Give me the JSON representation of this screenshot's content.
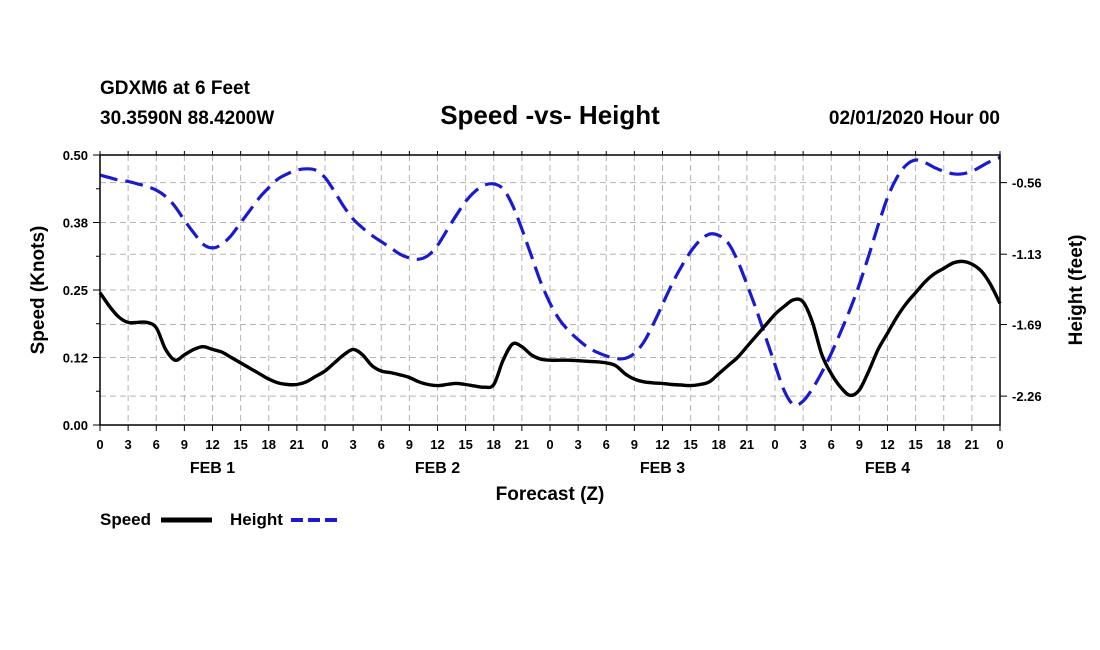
{
  "header": {
    "station": "GDXM6 at 6 Feet",
    "coords": "30.3590N 88.4200W",
    "title": "Speed -vs- Height",
    "datetime": "02/01/2020 Hour 00"
  },
  "legend": {
    "speed_label": "Speed",
    "height_label": "Height"
  },
  "colors": {
    "speed": "#000000",
    "height": "#1a1ad0",
    "grid": "#b4b4b4"
  },
  "chart_data": {
    "type": "line",
    "title": "Speed -vs- Height",
    "xlabel": "Forecast (Z)",
    "ylabel": "Speed (Knots)",
    "y2label": "Height (feet)",
    "xlim": [
      0,
      96
    ],
    "ylim": [
      0,
      0.5
    ],
    "y2lim": [
      -2.49,
      -0.34
    ],
    "x_tick_labels": [
      "0",
      "3",
      "6",
      "9",
      "12",
      "15",
      "18",
      "21",
      "0",
      "3",
      "6",
      "9",
      "12",
      "15",
      "18",
      "21",
      "0",
      "3",
      "6",
      "9",
      "12",
      "15",
      "18",
      "21",
      "0",
      "3",
      "6",
      "9",
      "12",
      "15",
      "18",
      "21",
      "0"
    ],
    "y_ticks": [
      "0.50",
      "0.38",
      "0.25",
      "0.12",
      "0.00"
    ],
    "y_tick_values": [
      0.5,
      0.375,
      0.25,
      0.125,
      0.0
    ],
    "y2_ticks": [
      "-0.56",
      "-1.13",
      "-1.69",
      "-2.26"
    ],
    "y2_tick_values": [
      -0.56,
      -1.13,
      -1.69,
      -2.26
    ],
    "day_labels": [
      {
        "label": "FEB 1",
        "hour": 12
      },
      {
        "label": "FEB 2",
        "hour": 36
      },
      {
        "label": "FEB 3",
        "hour": 60
      },
      {
        "label": "FEB 4",
        "hour": 84
      }
    ],
    "series": [
      {
        "name": "Speed",
        "axis": "left",
        "style": "solid",
        "x": [
          0,
          1,
          2,
          3,
          4,
          5,
          6,
          7,
          8,
          9,
          10,
          11,
          12,
          13,
          14,
          15,
          16,
          17,
          18,
          19,
          20,
          21,
          22,
          23,
          24,
          25,
          26,
          27,
          28,
          29,
          30,
          31,
          32,
          33,
          34,
          35,
          36,
          37,
          38,
          39,
          40,
          41,
          42,
          43,
          44,
          45,
          46,
          47,
          48,
          49,
          50,
          51,
          52,
          53,
          54,
          55,
          56,
          57,
          58,
          59,
          60,
          61,
          62,
          63,
          64,
          65,
          66,
          67,
          68,
          69,
          70,
          71,
          72,
          73,
          74,
          75,
          76,
          77,
          78,
          79,
          80,
          81,
          82,
          83,
          84,
          85,
          86,
          87,
          88,
          89,
          90,
          91,
          92,
          93,
          94,
          95,
          96
        ],
        "values": [
          0.245,
          0.22,
          0.2,
          0.19,
          0.19,
          0.19,
          0.18,
          0.14,
          0.12,
          0.13,
          0.14,
          0.145,
          0.14,
          0.135,
          0.125,
          0.115,
          0.105,
          0.095,
          0.085,
          0.078,
          0.075,
          0.075,
          0.08,
          0.09,
          0.1,
          0.115,
          0.13,
          0.14,
          0.13,
          0.11,
          0.1,
          0.097,
          0.093,
          0.088,
          0.08,
          0.075,
          0.073,
          0.075,
          0.077,
          0.075,
          0.072,
          0.07,
          0.075,
          0.12,
          0.15,
          0.145,
          0.13,
          0.122,
          0.12,
          0.12,
          0.12,
          0.119,
          0.118,
          0.117,
          0.115,
          0.11,
          0.095,
          0.085,
          0.08,
          0.078,
          0.077,
          0.075,
          0.074,
          0.073,
          0.075,
          0.08,
          0.095,
          0.11,
          0.125,
          0.145,
          0.165,
          0.185,
          0.205,
          0.22,
          0.232,
          0.228,
          0.19,
          0.13,
          0.095,
          0.07,
          0.055,
          0.065,
          0.1,
          0.14,
          0.17,
          0.2,
          0.225,
          0.245,
          0.265,
          0.28,
          0.29,
          0.3,
          0.303,
          0.298,
          0.285,
          0.26,
          0.225
        ]
      },
      {
        "name": "Height",
        "axis": "right",
        "style": "dashed",
        "x": [
          0,
          1,
          2,
          3,
          4,
          5,
          6,
          7,
          8,
          9,
          10,
          11,
          12,
          13,
          14,
          15,
          16,
          17,
          18,
          19,
          20,
          21,
          22,
          23,
          24,
          25,
          26,
          27,
          28,
          29,
          30,
          31,
          32,
          33,
          34,
          35,
          36,
          37,
          38,
          39,
          40,
          41,
          42,
          43,
          44,
          45,
          46,
          47,
          48,
          49,
          50,
          51,
          52,
          53,
          54,
          55,
          56,
          57,
          58,
          59,
          60,
          61,
          62,
          63,
          64,
          65,
          66,
          67,
          68,
          69,
          70,
          71,
          72,
          73,
          74,
          75,
          76,
          77,
          78,
          79,
          80,
          81,
          82,
          83,
          84,
          85,
          86,
          87,
          88,
          89,
          90,
          91,
          92,
          93,
          94,
          95,
          96
        ],
        "values": [
          -0.5,
          -0.52,
          -0.54,
          -0.55,
          -0.57,
          -0.59,
          -0.62,
          -0.67,
          -0.75,
          -0.86,
          -0.96,
          -1.05,
          -1.08,
          -1.05,
          -0.98,
          -0.88,
          -0.78,
          -0.68,
          -0.6,
          -0.53,
          -0.49,
          -0.46,
          -0.45,
          -0.46,
          -0.52,
          -0.63,
          -0.75,
          -0.85,
          -0.92,
          -0.98,
          -1.03,
          -1.08,
          -1.13,
          -1.16,
          -1.17,
          -1.14,
          -1.06,
          -0.94,
          -0.82,
          -0.71,
          -0.63,
          -0.58,
          -0.57,
          -0.61,
          -0.74,
          -0.93,
          -1.14,
          -1.35,
          -1.52,
          -1.65,
          -1.74,
          -1.81,
          -1.87,
          -1.91,
          -1.94,
          -1.96,
          -1.96,
          -1.92,
          -1.83,
          -1.69,
          -1.53,
          -1.37,
          -1.23,
          -1.11,
          -1.02,
          -0.97,
          -0.98,
          -1.04,
          -1.18,
          -1.37,
          -1.57,
          -1.79,
          -2.01,
          -2.22,
          -2.33,
          -2.3,
          -2.2,
          -2.07,
          -1.92,
          -1.75,
          -1.57,
          -1.37,
          -1.14,
          -0.9,
          -0.68,
          -0.52,
          -0.42,
          -0.38,
          -0.4,
          -0.44,
          -0.47,
          -0.49,
          -0.49,
          -0.47,
          -0.43,
          -0.39,
          -0.36
        ]
      }
    ]
  }
}
